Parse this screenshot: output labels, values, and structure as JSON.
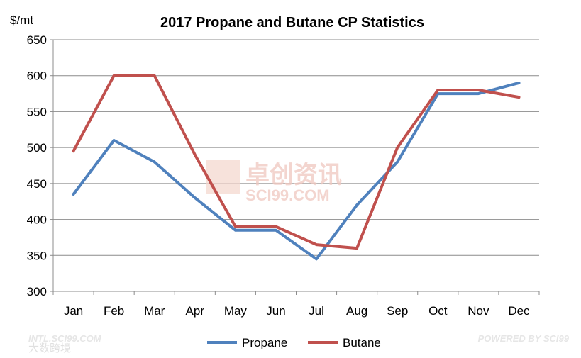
{
  "chart_data": {
    "type": "line",
    "title": "2017 Propane and Butane CP Statistics",
    "ylabel": "$/mt",
    "xlabel": "",
    "categories": [
      "Jan",
      "Feb",
      "Mar",
      "Apr",
      "May",
      "Jun",
      "Jul",
      "Aug",
      "Sep",
      "Oct",
      "Nov",
      "Dec"
    ],
    "ylim": [
      300,
      650
    ],
    "yticks": [
      300,
      350,
      400,
      450,
      500,
      550,
      600,
      650
    ],
    "grid": "horizontal",
    "legend_position": "bottom",
    "series": [
      {
        "name": "Propane",
        "color": "#4f81bd",
        "values": [
          435,
          510,
          480,
          430,
          385,
          385,
          345,
          420,
          480,
          575,
          575,
          590
        ]
      },
      {
        "name": "Butane",
        "color": "#c0504d",
        "values": [
          495,
          600,
          600,
          490,
          390,
          390,
          365,
          360,
          500,
          580,
          580,
          570
        ]
      }
    ]
  },
  "watermark": {
    "text": "卓创资讯",
    "sub": "SCI99.COM"
  },
  "footer": {
    "left_url": "INTL.SCI99.COM",
    "left_brand": "大数跨境",
    "right": "POWERED BY SCI99"
  }
}
